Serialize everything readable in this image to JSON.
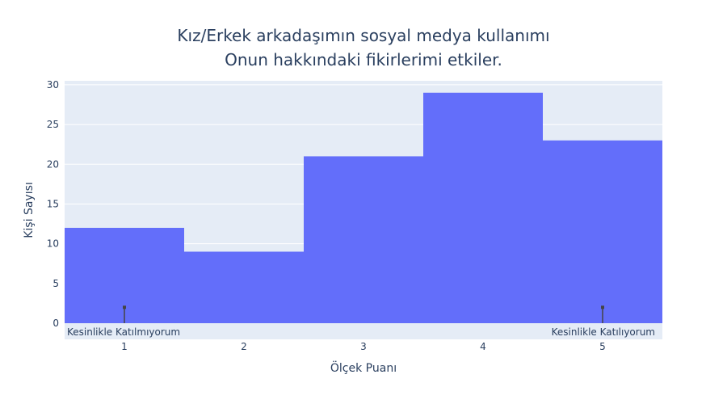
{
  "chart_data": {
    "type": "bar",
    "title_lines": [
      "Kız/Erkek arkadaşımın sosyal medya kullanımı",
      "Onun hakkındaki fikirlerimi etkiler."
    ],
    "xlabel": "Ölçek Puanı",
    "ylabel": "Kişi Sayısı",
    "categories": [
      "1",
      "2",
      "3",
      "4",
      "5"
    ],
    "values": [
      12,
      9,
      21,
      29,
      23
    ],
    "ylim": [
      0,
      30.5
    ],
    "yticks": [
      0,
      5,
      10,
      15,
      20,
      25,
      30
    ],
    "grid": true,
    "colors": {
      "bar": "#636efa",
      "plot_bg": "#e5ecf6",
      "grid": "#ffffff",
      "text": "#2a3f5f",
      "marker": "#444444"
    },
    "annotations": [
      {
        "text": "Kesinlikle Katılmıyorum",
        "category": "1",
        "y": 2
      },
      {
        "text": "Kesinlikle Katılıyorum",
        "category": "5",
        "y": 2
      }
    ]
  }
}
